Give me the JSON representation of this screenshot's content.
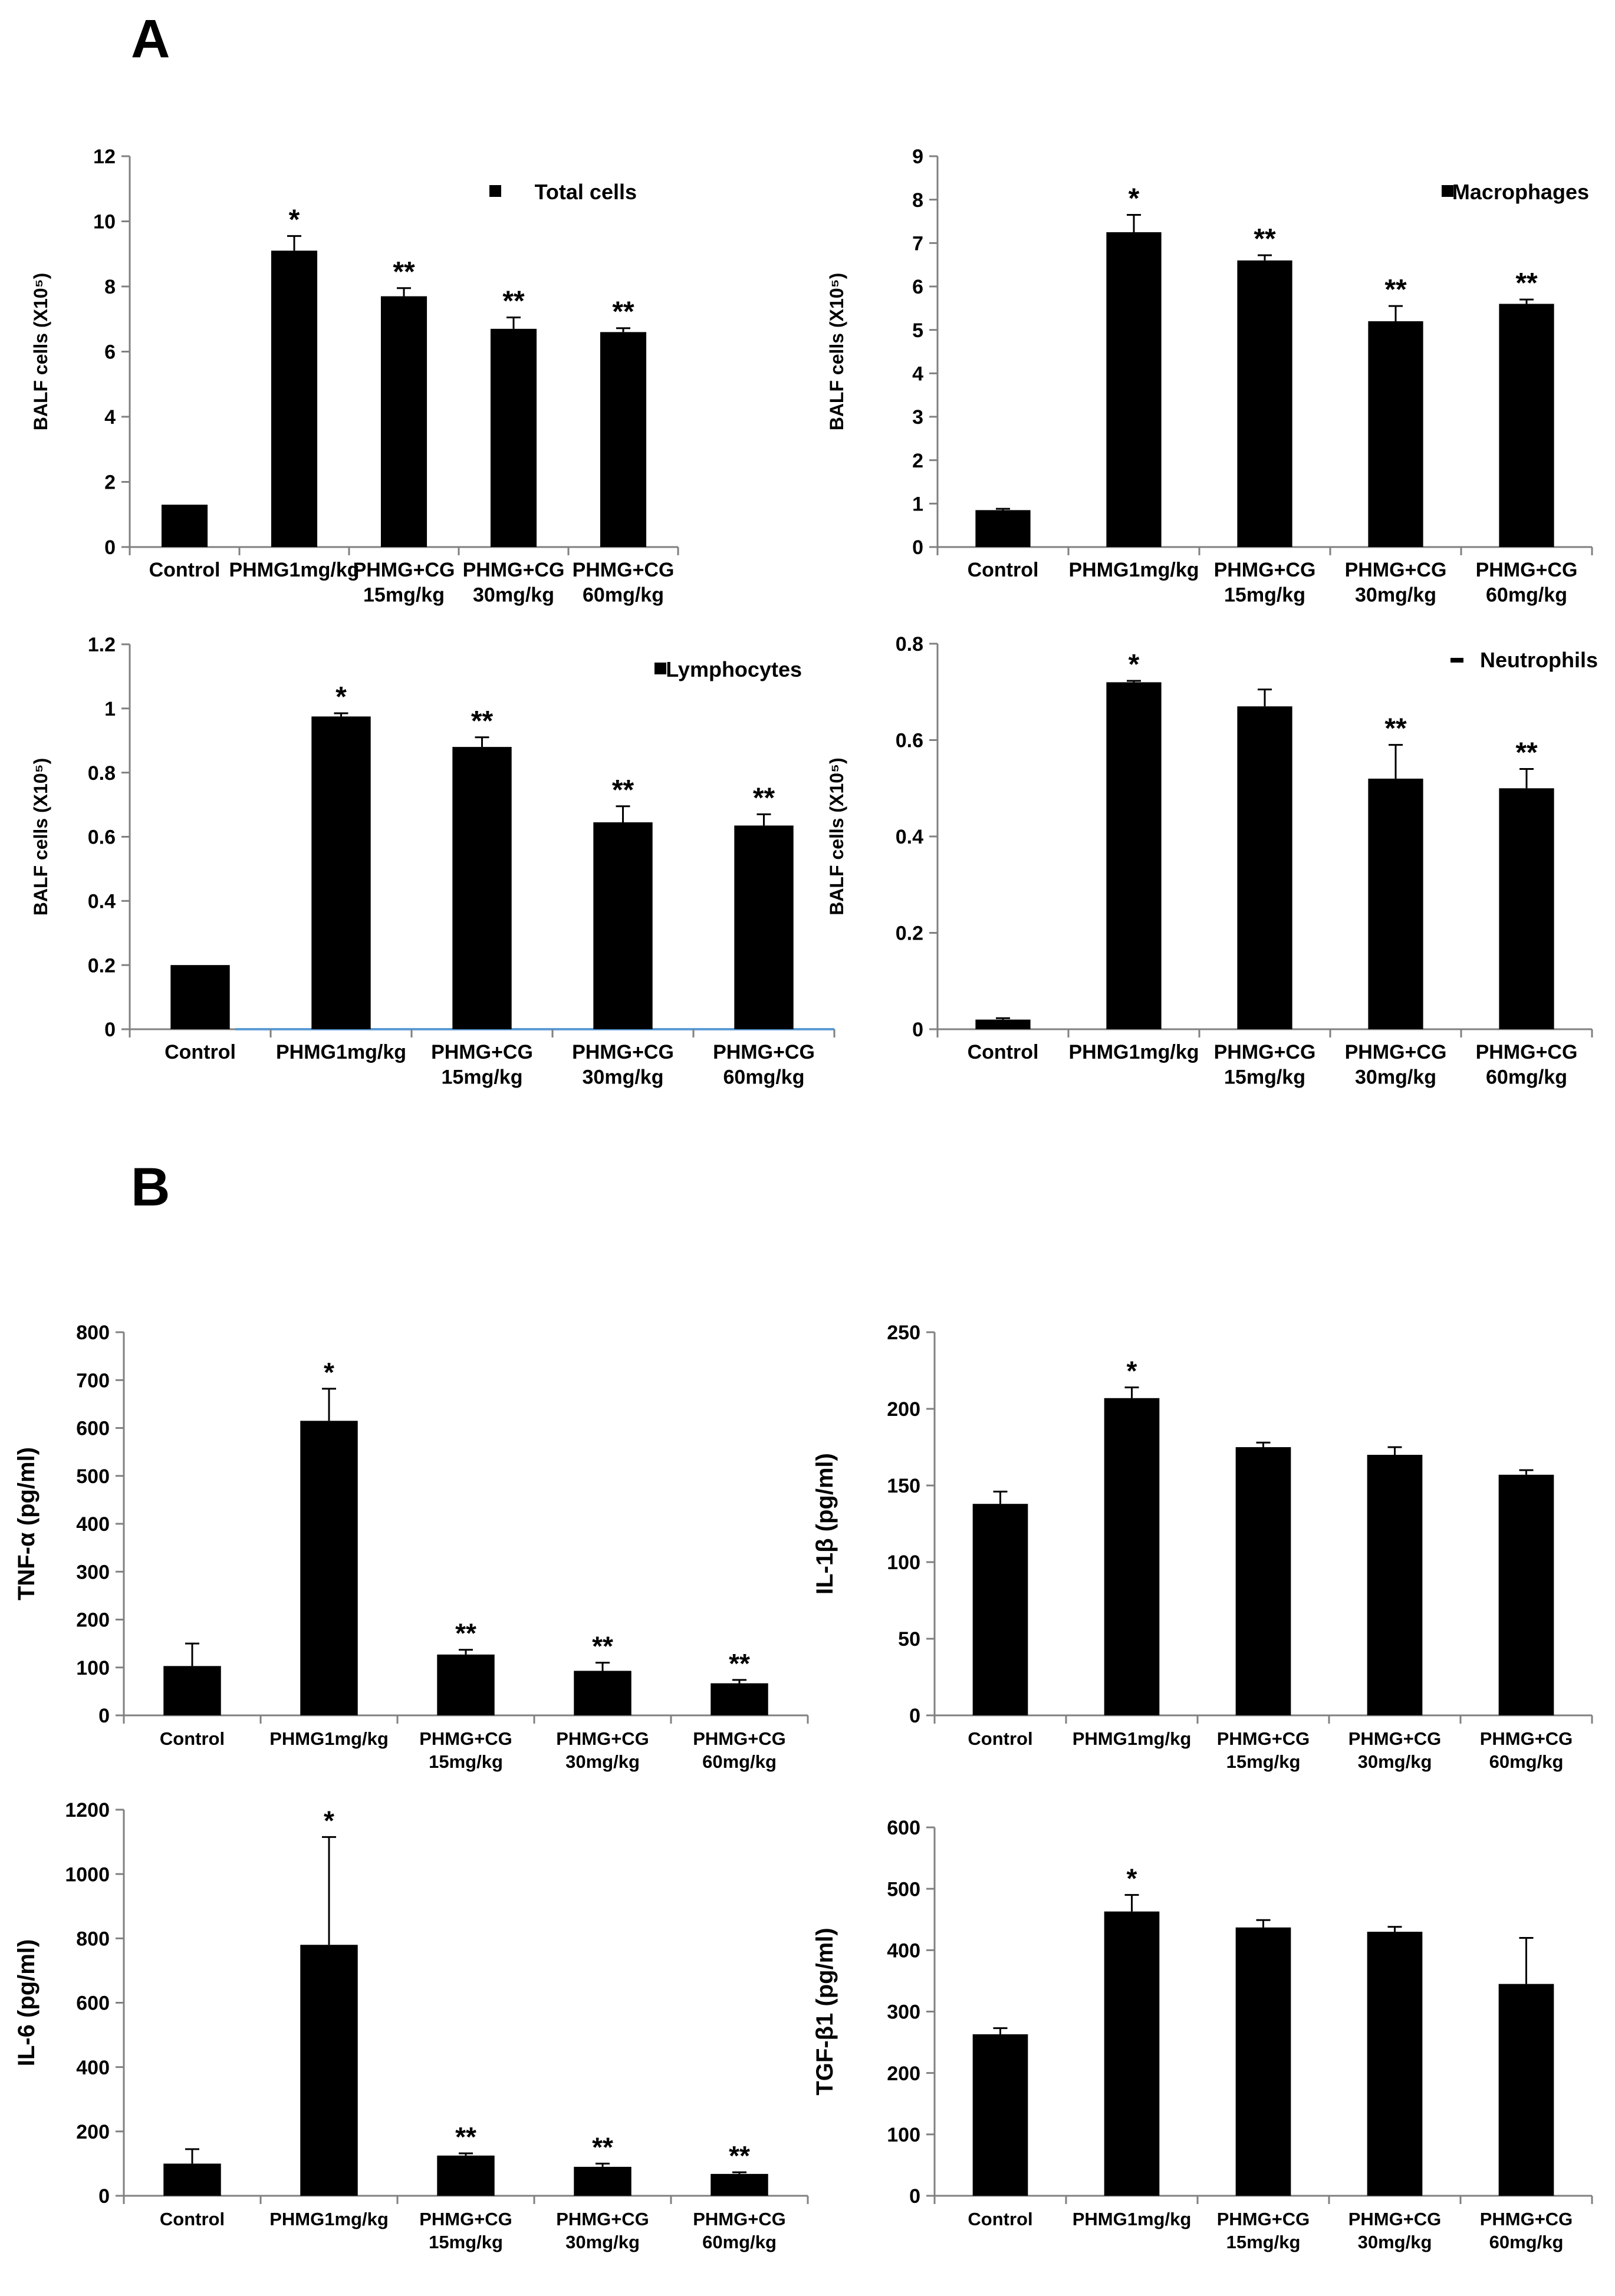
{
  "panels": {
    "a_label": "A",
    "b_label": "B"
  },
  "chart_data": [
    {
      "id": "total-cells",
      "type": "bar",
      "categories": [
        [
          "Control"
        ],
        [
          "PHMG1mg/kg"
        ],
        [
          "PHMG+CG",
          "15mg/kg"
        ],
        [
          "PHMG+CG",
          "30mg/kg"
        ],
        [
          "PHMG+CG",
          "60mg/kg"
        ]
      ],
      "values": [
        1.3,
        9.1,
        7.7,
        6.7,
        6.6
      ],
      "errors": [
        0,
        0.45,
        0.25,
        0.35,
        0.12
      ],
      "significance": [
        "",
        "*",
        "**",
        "**",
        "**"
      ],
      "ylabel": "BALF cells (X10⁵)",
      "ylim": [
        0,
        12
      ],
      "yticks": [
        0,
        2,
        4,
        6,
        8,
        10,
        12
      ],
      "ytick_labels": [
        "0",
        "2",
        "4",
        "6",
        "8",
        "10",
        "12"
      ],
      "legend": "Total cells",
      "legend_marker": "square",
      "legend_position": "top-right",
      "axis_color": "#808080"
    },
    {
      "id": "macrophages",
      "type": "bar",
      "categories": [
        [
          "Control"
        ],
        [
          "PHMG1mg/kg"
        ],
        [
          "PHMG+CG",
          "15mg/kg"
        ],
        [
          "PHMG+CG",
          "30mg/kg"
        ],
        [
          "PHMG+CG",
          "60mg/kg"
        ]
      ],
      "values": [
        0.85,
        7.25,
        6.6,
        5.2,
        5.6
      ],
      "errors": [
        0.03,
        0.4,
        0.12,
        0.35,
        0.1
      ],
      "significance": [
        "",
        "*",
        "**",
        "**",
        "**"
      ],
      "ylabel": "BALF cells (X10⁵)",
      "ylim": [
        0,
        9
      ],
      "yticks": [
        0,
        1,
        2,
        3,
        4,
        5,
        6,
        7,
        8,
        9
      ],
      "ytick_labels": [
        "0",
        "1",
        "2",
        "3",
        "4",
        "5",
        "6",
        "7",
        "8",
        "9"
      ],
      "legend": "Macrophages",
      "legend_marker": "square",
      "legend_position": "top-right",
      "axis_color": "#808080"
    },
    {
      "id": "lymphocytes",
      "type": "bar",
      "categories": [
        [
          "Control"
        ],
        [
          "PHMG1mg/kg"
        ],
        [
          "PHMG+CG",
          "15mg/kg"
        ],
        [
          "PHMG+CG",
          "30mg/kg"
        ],
        [
          "PHMG+CG",
          "60mg/kg"
        ]
      ],
      "values": [
        0.2,
        0.975,
        0.88,
        0.645,
        0.635
      ],
      "errors": [
        0,
        0.01,
        0.03,
        0.05,
        0.035
      ],
      "significance": [
        "",
        "*",
        "**",
        "**",
        "**"
      ],
      "ylabel": "BALF cells (X10⁵)",
      "ylim": [
        0,
        1.2
      ],
      "yticks": [
        0,
        0.2,
        0.4,
        0.6,
        0.8,
        1,
        1.2
      ],
      "ytick_labels": [
        "0",
        "0.2",
        "0.4",
        "0.6",
        "0.8",
        "1",
        "1.2"
      ],
      "legend": "Lymphocytes",
      "legend_marker": "square",
      "legend_position": "top-right",
      "axis_color": "#808080",
      "baseline_color": "#5b9bd5"
    },
    {
      "id": "neutrophils",
      "type": "bar",
      "categories": [
        [
          "Control"
        ],
        [
          "PHMG1mg/kg"
        ],
        [
          "PHMG+CG",
          "15mg/kg"
        ],
        [
          "PHMG+CG",
          "30mg/kg"
        ],
        [
          "PHMG+CG",
          "60mg/kg"
        ]
      ],
      "values": [
        0.02,
        0.72,
        0.67,
        0.52,
        0.5
      ],
      "errors": [
        0.003,
        0.003,
        0.035,
        0.07,
        0.04
      ],
      "significance": [
        "",
        "*",
        "",
        "**",
        "**"
      ],
      "ylabel": "BALF cells (X10⁵)",
      "ylim": [
        0,
        0.8
      ],
      "yticks": [
        0,
        0.2,
        0.4,
        0.6,
        0.8
      ],
      "ytick_labels": [
        "0",
        "0.2",
        "0.4",
        "0.6",
        "0.8"
      ],
      "legend": "Neutrophils",
      "legend_marker": "dash",
      "legend_position": "top-right",
      "axis_color": "#808080"
    },
    {
      "id": "tnf-alpha",
      "type": "bar",
      "categories": [
        [
          "Control"
        ],
        [
          "PHMG1mg/kg"
        ],
        [
          "PHMG+CG",
          "15mg/kg"
        ],
        [
          "PHMG+CG",
          "30mg/kg"
        ],
        [
          "PHMG+CG",
          "60mg/kg"
        ]
      ],
      "values": [
        103,
        615,
        127,
        93,
        67
      ],
      "errors": [
        47,
        67,
        10,
        17,
        7
      ],
      "significance": [
        "",
        "*",
        "**",
        "**",
        "**"
      ],
      "ylabel": "TNF-α (pg/ml)",
      "ylim": [
        0,
        800
      ],
      "yticks": [
        0,
        100,
        200,
        300,
        400,
        500,
        600,
        700,
        800
      ],
      "ytick_labels": [
        "0",
        "100",
        "200",
        "300",
        "400",
        "500",
        "600",
        "700",
        "800"
      ],
      "legend": "",
      "axis_color": "#808080"
    },
    {
      "id": "il-1beta",
      "type": "bar",
      "categories": [
        [
          "Control"
        ],
        [
          "PHMG1mg/kg"
        ],
        [
          "PHMG+CG",
          "15mg/kg"
        ],
        [
          "PHMG+CG",
          "30mg/kg"
        ],
        [
          "PHMG+CG",
          "60mg/kg"
        ]
      ],
      "values": [
        138,
        207,
        175,
        170,
        157
      ],
      "errors": [
        8,
        7,
        3,
        5,
        3
      ],
      "significance": [
        "",
        "*",
        "",
        "",
        ""
      ],
      "ylabel": "IL-1β (pg/ml)",
      "ylim": [
        0,
        250
      ],
      "yticks": [
        0,
        50,
        100,
        150,
        200,
        250
      ],
      "ytick_labels": [
        "0",
        "50",
        "100",
        "150",
        "200",
        "250"
      ],
      "legend": "",
      "axis_color": "#808080"
    },
    {
      "id": "il-6",
      "type": "bar",
      "categories": [
        [
          "Control"
        ],
        [
          "PHMG1mg/kg"
        ],
        [
          "PHMG+CG",
          "15mg/kg"
        ],
        [
          "PHMG+CG",
          "30mg/kg"
        ],
        [
          "PHMG+CG",
          "60mg/kg"
        ]
      ],
      "values": [
        100,
        780,
        125,
        90,
        68
      ],
      "errors": [
        45,
        335,
        7,
        10,
        5
      ],
      "significance": [
        "",
        "*",
        "**",
        "**",
        "**"
      ],
      "ylabel": "IL-6 (pg/ml)",
      "ylim": [
        0,
        1200
      ],
      "yticks": [
        0,
        200,
        400,
        600,
        800,
        1000,
        1200
      ],
      "ytick_labels": [
        "0",
        "200",
        "400",
        "600",
        "800",
        "1000",
        "1200"
      ],
      "legend": "",
      "axis_color": "#808080"
    },
    {
      "id": "tgf-beta1",
      "type": "bar",
      "categories": [
        [
          "Control"
        ],
        [
          "PHMG1mg/kg"
        ],
        [
          "PHMG+CG",
          "15mg/kg"
        ],
        [
          "PHMG+CG",
          "30mg/kg"
        ],
        [
          "PHMG+CG",
          "60mg/kg"
        ]
      ],
      "values": [
        263,
        463,
        437,
        430,
        345
      ],
      "errors": [
        10,
        27,
        12,
        8,
        75
      ],
      "significance": [
        "",
        "*",
        "",
        "",
        ""
      ],
      "ylabel": "TGF-β1 (pg/ml)",
      "ylim": [
        0,
        600
      ],
      "yticks": [
        0,
        100,
        200,
        300,
        400,
        500,
        600
      ],
      "ytick_labels": [
        "0",
        "100",
        "200",
        "300",
        "400",
        "500",
        "600"
      ],
      "legend": "",
      "axis_color": "#808080"
    }
  ]
}
